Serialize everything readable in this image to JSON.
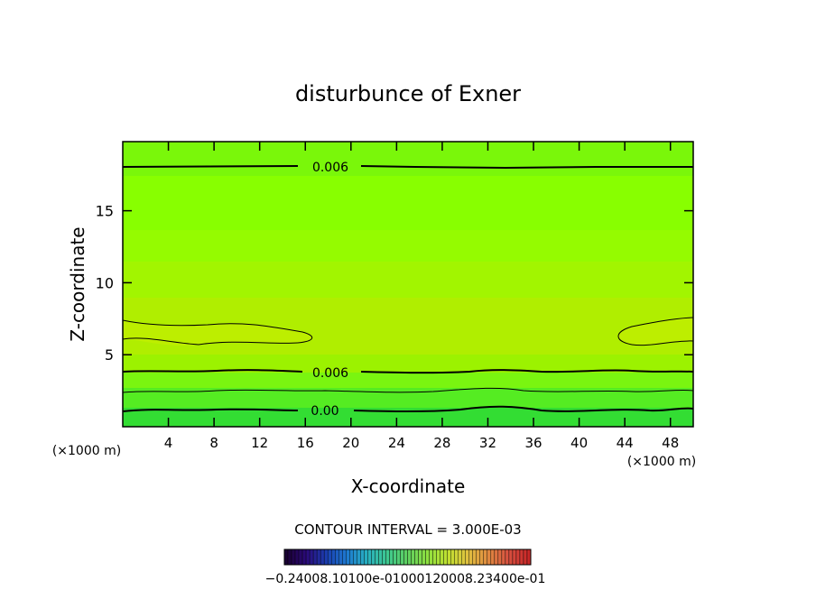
{
  "chart_data": {
    "type": "contour",
    "title": "disturbunce of Exner",
    "xlabel": "X-coordinate",
    "ylabel": "Z-coordinate",
    "x_unit": "(×1000 m)",
    "xlim": [
      0,
      50
    ],
    "ylim": [
      0,
      19.8
    ],
    "x_ticks": [
      "4",
      "8",
      "12",
      "16",
      "20",
      "24",
      "28",
      "32",
      "36",
      "40",
      "44",
      "48"
    ],
    "y_ticks": [
      "5",
      "10",
      "15"
    ],
    "contour_interval_text": "CONTOUR INTERVAL = 3.000E-03",
    "contour_labels": [
      {
        "text": "0.006",
        "x": 16.5,
        "z": 18.0
      },
      {
        "text": "0.006",
        "x": 16.5,
        "z": 3.8
      },
      {
        "text": "0.00",
        "x": 16.0,
        "z": 1.1
      }
    ],
    "colorbar_labels": "−0.24008.10100e-01000120008.23400e-01",
    "colorbar_colors": [
      "#1a0033",
      "#2b0a7a",
      "#1a3fb0",
      "#1e7ad0",
      "#28b0c0",
      "#3ec890",
      "#5fd060",
      "#8fe040",
      "#c0e030",
      "#e0c040",
      "#e08a40",
      "#d85040",
      "#c82828"
    ],
    "field_colors": [
      "#33dd33",
      "#55ee22",
      "#77f512",
      "#88ff00",
      "#99ff00",
      "#aaf000",
      "#b5ee00",
      "#c0f000"
    ]
  }
}
